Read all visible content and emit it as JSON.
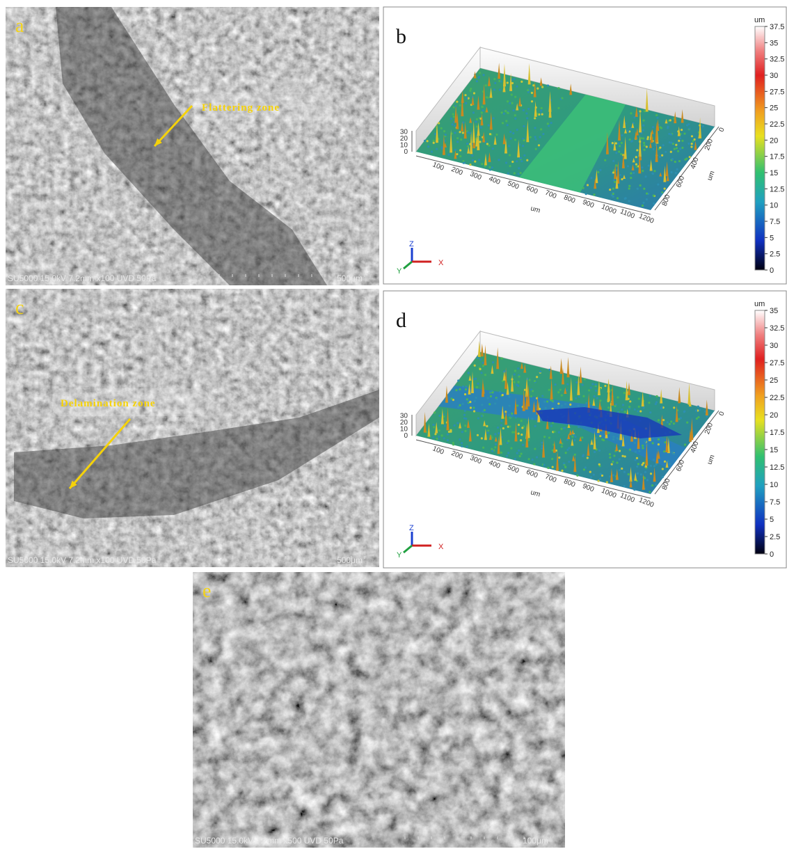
{
  "panels": [
    {
      "label": "a",
      "caption": "SU5000 15.0kV 7.2mm x100 UVD 50Pa",
      "scale": "500μm",
      "annotation": "Flattering zone"
    },
    {
      "label": "b",
      "colorbar": {
        "unit": "um",
        "ticks": [
          37.5,
          35,
          32.5,
          30,
          27.5,
          25,
          22.5,
          20,
          17.5,
          15,
          12.5,
          10,
          7.5,
          5,
          2.5,
          0
        ]
      },
      "z_ticks": [
        30,
        20,
        10,
        0
      ],
      "x_ticks": [
        100,
        200,
        300,
        400,
        500,
        600,
        700,
        800,
        900,
        1000,
        1100,
        1200
      ],
      "x_title": "um",
      "y_ticks": [
        0,
        200,
        400,
        600,
        800
      ],
      "y_title": "um",
      "triad": {
        "z": "Z",
        "y": "Y",
        "x": "X"
      }
    },
    {
      "label": "c",
      "caption": "SU5000 15.0kV 7.2mm x100 UVD 50Pa",
      "scale": "500μm",
      "annotation": "Delamination zone"
    },
    {
      "label": "d",
      "colorbar": {
        "unit": "um",
        "ticks": [
          35,
          32.5,
          30,
          27.5,
          25,
          22.5,
          20,
          17.5,
          15,
          12.5,
          10,
          7.5,
          5,
          2.5,
          0
        ]
      },
      "z_ticks": [
        30,
        20,
        10,
        0
      ],
      "x_ticks": [
        100,
        200,
        300,
        400,
        500,
        600,
        700,
        800,
        900,
        1000,
        1100,
        1200
      ],
      "x_title": "um",
      "y_ticks": [
        0,
        200,
        400,
        600,
        800
      ],
      "y_title": "um",
      "triad": {
        "z": "Z",
        "y": "Y",
        "x": "X"
      }
    },
    {
      "label": "e",
      "caption": "SU5000 15.0kV 7.2mm x500 UVD 50Pa",
      "scale": "100μm"
    }
  ]
}
